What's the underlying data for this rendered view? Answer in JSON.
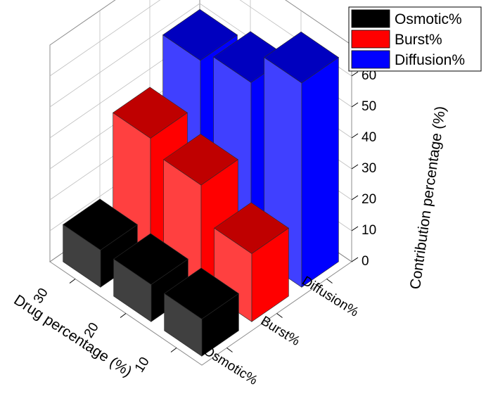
{
  "chart_data": {
    "type": "bar3d",
    "x_axis": {
      "label": "Drug percentage (%)",
      "categories": [
        "30",
        "20",
        "10"
      ]
    },
    "y_axis": {
      "categories": [
        "Osmotic%",
        "Burst%",
        "Diffusion%"
      ]
    },
    "z_axis": {
      "label": "Contribution percentage (%)",
      "range": [
        0,
        70
      ],
      "ticks": [
        0,
        10,
        20,
        30,
        40,
        50,
        60,
        70
      ]
    },
    "series": [
      {
        "name": "Osmotic%",
        "color": "#000000",
        "values": [
          12,
          12,
          12
        ]
      },
      {
        "name": "Burst%",
        "color": "#ff0000",
        "values": [
          37,
          33,
          22
        ]
      },
      {
        "name": "Diffusion%",
        "color": "#0000ff",
        "values": [
          51,
          55,
          66
        ]
      }
    ],
    "legend": {
      "position": "top-right",
      "items": [
        "Osmotic%",
        "Burst%",
        "Diffusion%"
      ]
    },
    "grid": true
  }
}
